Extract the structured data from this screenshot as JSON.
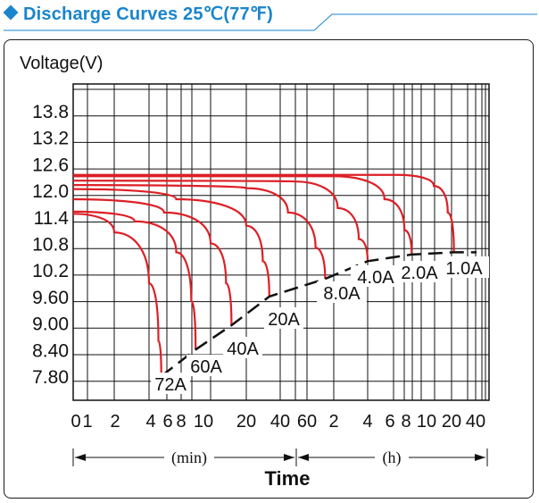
{
  "header": {
    "title": "Discharge Curves 25℃(77℉)",
    "accent_color": "#1a85cc"
  },
  "chart_data": {
    "type": "line",
    "title": "Discharge Curves 25℃(77℉)",
    "ylabel": "Voltage(V)",
    "xlabel": "Time",
    "x_scale": "log",
    "y_ticks": [
      "13.8",
      "13.2",
      "12.6",
      "12.0",
      "11.4",
      "10.8",
      "10.2",
      "9.60",
      "9.00",
      "8.40",
      "7.80"
    ],
    "y_values": [
      13.8,
      13.2,
      12.6,
      12.0,
      11.4,
      10.8,
      10.2,
      9.6,
      9.0,
      8.4,
      7.8
    ],
    "ylim": [
      7.2,
      14.4
    ],
    "x_ticks_min": [
      "0",
      "1",
      "2",
      "4",
      "6",
      "8",
      "10",
      "20",
      "40"
    ],
    "x_ticks_h": [
      "60",
      "2",
      "4",
      "6",
      "8",
      "10",
      "20",
      "40"
    ],
    "unit_min": "(min)",
    "unit_h": "(h)",
    "grid": true,
    "curve_color": "#dd1f26",
    "series": [
      {
        "name": "72A",
        "end_minutes": 4.8,
        "points": [
          [
            0.3,
            11.47
          ],
          [
            2,
            11.05
          ],
          [
            4,
            9.9
          ],
          [
            4.6,
            8.6
          ],
          [
            4.8,
            7.8
          ]
        ]
      },
      {
        "name": "60A",
        "end_minutes": 8,
        "points": [
          [
            0.3,
            11.52
          ],
          [
            3,
            11.3
          ],
          [
            6,
            10.6
          ],
          [
            7.5,
            9.5
          ],
          [
            8,
            8.4
          ]
        ]
      },
      {
        "name": "40A",
        "end_minutes": 15,
        "points": [
          [
            0.3,
            11.8
          ],
          [
            5,
            11.5
          ],
          [
            10,
            10.8
          ],
          [
            13.5,
            9.9
          ],
          [
            15,
            8.95
          ]
        ]
      },
      {
        "name": "20A",
        "end_minutes": 32,
        "points": [
          [
            0.3,
            12.03
          ],
          [
            6,
            11.8
          ],
          [
            20,
            11.2
          ],
          [
            28,
            10.4
          ],
          [
            32,
            9.6
          ]
        ]
      },
      {
        "name": "8.0A",
        "end_minutes": 96,
        "points": [
          [
            0.3,
            12.12
          ],
          [
            20,
            12.05
          ],
          [
            45,
            11.5
          ],
          [
            75,
            10.7
          ],
          [
            96,
            10.0
          ]
        ]
      },
      {
        "name": "4.0A",
        "end_minutes": 240,
        "points": [
          [
            0.3,
            12.22
          ],
          [
            50,
            12.2
          ],
          [
            130,
            11.6
          ],
          [
            200,
            10.9
          ],
          [
            240,
            10.4
          ]
        ]
      },
      {
        "name": "2.0A",
        "end_minutes": 510,
        "points": [
          [
            0.3,
            12.32
          ],
          [
            120,
            12.32
          ],
          [
            320,
            11.8
          ],
          [
            450,
            11.1
          ],
          [
            510,
            10.55
          ]
        ]
      },
      {
        "name": "1.0A",
        "end_minutes": 1260,
        "points": [
          [
            0.3,
            12.35
          ],
          [
            400,
            12.35
          ],
          [
            800,
            12.1
          ],
          [
            1100,
            11.5
          ],
          [
            1260,
            10.6
          ]
        ]
      }
    ],
    "cutoff_curve": [
      [
        4.8,
        7.8
      ],
      [
        8,
        8.4
      ],
      [
        15,
        8.95
      ],
      [
        32,
        9.6
      ],
      [
        96,
        10.0
      ],
      [
        240,
        10.4
      ],
      [
        510,
        10.55
      ],
      [
        1260,
        10.6
      ],
      [
        2000,
        10.6
      ]
    ]
  }
}
